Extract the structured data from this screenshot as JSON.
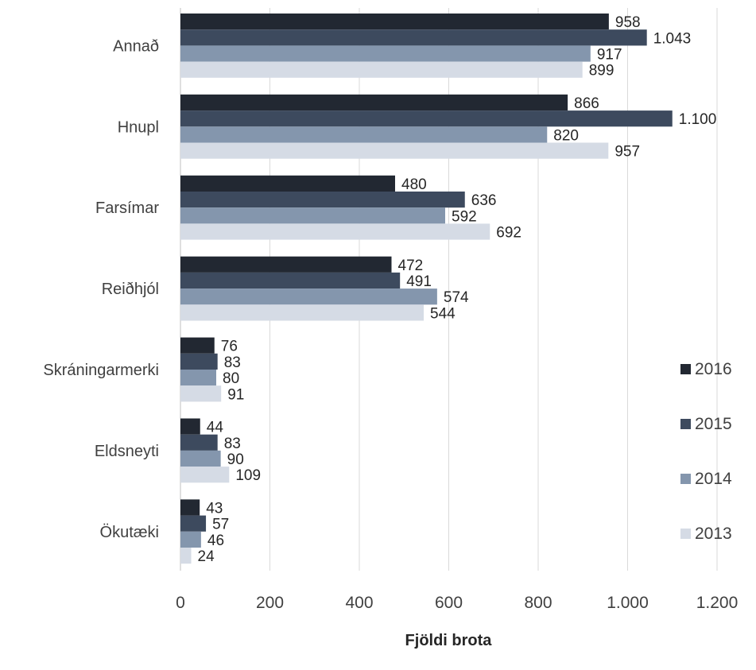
{
  "chart_data": {
    "type": "bar",
    "orientation": "horizontal",
    "categories": [
      "Annað",
      "Hnupl",
      "Farsímar",
      "Reiðhjól",
      "Skráningarmerki",
      "Eldsneyti",
      "Ökutæki"
    ],
    "series": [
      {
        "name": "2016",
        "color": "#222832",
        "values": [
          958,
          866,
          480,
          472,
          76,
          44,
          43
        ],
        "labels": [
          "958",
          "866",
          "480",
          "472",
          "76",
          "44",
          "43"
        ]
      },
      {
        "name": "2015",
        "color": "#3d4a5e",
        "values": [
          1043,
          1100,
          636,
          491,
          83,
          83,
          57
        ],
        "labels": [
          "1.043",
          "1.100",
          "636",
          "491",
          "83",
          "83",
          "57"
        ]
      },
      {
        "name": "2014",
        "color": "#8496ad",
        "values": [
          917,
          820,
          592,
          574,
          80,
          90,
          46
        ],
        "labels": [
          "917",
          "820",
          "592",
          "574",
          "80",
          "90",
          "46"
        ]
      },
      {
        "name": "2013",
        "color": "#d5dbe5",
        "values": [
          899,
          957,
          692,
          544,
          91,
          109,
          24
        ],
        "labels": [
          "899",
          "957",
          "692",
          "544",
          "91",
          "109",
          "24"
        ]
      }
    ],
    "xlim": [
      0,
      1200
    ],
    "xticks": [
      0,
      200,
      400,
      600,
      800,
      1000,
      1200
    ],
    "xtick_labels": [
      "0",
      "200",
      "400",
      "600",
      "800",
      "1.000",
      "1.200"
    ],
    "xlabel": "Fjöldi brota",
    "ylabel": "",
    "title": "",
    "grid": "vertical",
    "legend_position": "right"
  }
}
